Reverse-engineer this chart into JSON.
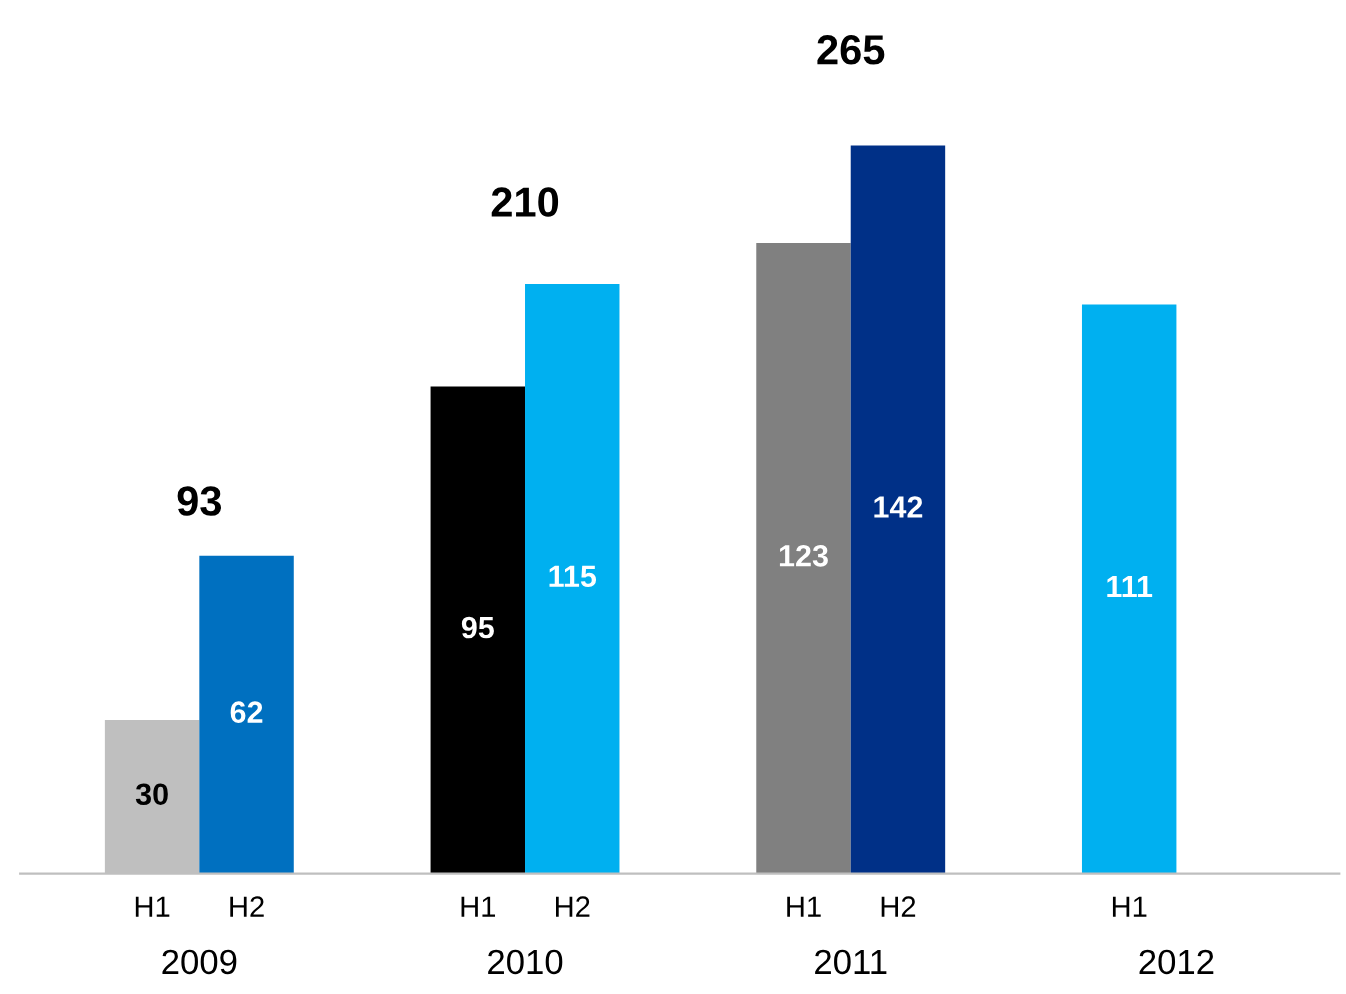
{
  "chart_data": {
    "type": "bar",
    "categories": [
      "2009",
      "2010",
      "2011",
      "2012"
    ],
    "series": [
      {
        "name": "H1",
        "colors": [
          "#bfbfbf",
          "#000000",
          "#808080",
          "#00b0f0"
        ],
        "values": [
          30,
          95,
          123,
          111
        ]
      },
      {
        "name": "H2",
        "colors": [
          "#0070c0",
          "#00b0f0",
          "#003087",
          null
        ],
        "values": [
          62,
          115,
          142,
          null
        ]
      }
    ],
    "data_labels": true,
    "totals": [
      "93",
      "210",
      "265",
      null
    ],
    "legend": false,
    "grid": false
  }
}
